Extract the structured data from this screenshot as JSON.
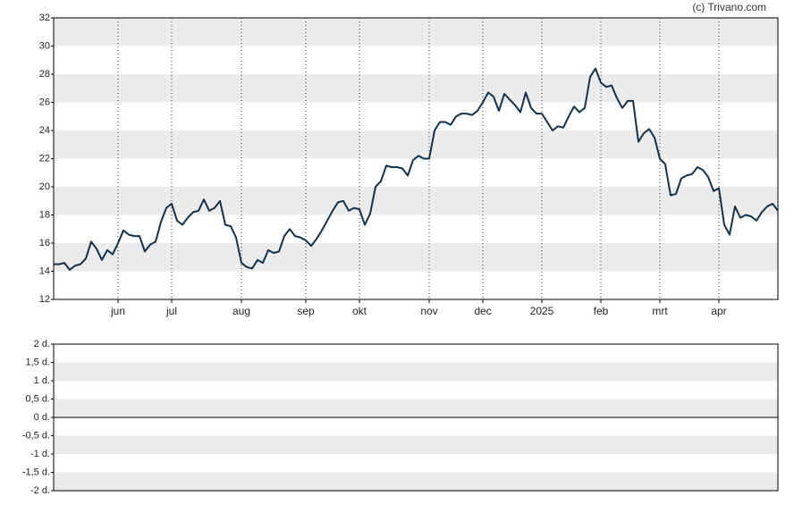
{
  "watermark": "(c) Trivano.com",
  "chart_data": [
    {
      "type": "line",
      "categories": [
        null,
        null,
        null,
        null,
        null,
        null,
        null,
        null,
        null,
        null,
        null,
        null,
        "jun",
        null,
        null,
        null,
        null,
        null,
        null,
        null,
        null,
        null,
        "jul",
        null,
        null,
        null,
        null,
        null,
        null,
        null,
        null,
        null,
        null,
        null,
        null,
        "aug",
        null,
        null,
        null,
        null,
        null,
        null,
        null,
        null,
        null,
        null,
        null,
        "sep",
        null,
        null,
        null,
        null,
        null,
        null,
        null,
        null,
        null,
        "okt",
        null,
        null,
        null,
        null,
        null,
        null,
        null,
        null,
        null,
        null,
        null,
        null,
        "nov",
        null,
        null,
        null,
        null,
        null,
        null,
        null,
        null,
        null,
        "dec",
        null,
        null,
        null,
        null,
        null,
        null,
        null,
        null,
        null,
        null,
        "2025",
        null,
        null,
        null,
        null,
        null,
        null,
        null,
        null,
        null,
        null,
        "feb",
        null,
        null,
        null,
        null,
        null,
        null,
        null,
        null,
        null,
        null,
        "mrt",
        null,
        null,
        null,
        null,
        null,
        null,
        null,
        null,
        null,
        null,
        "apr",
        null,
        null,
        null,
        null,
        null,
        null,
        null,
        null,
        null,
        null,
        null
      ],
      "series": [
        {
          "color": "#0d3350",
          "values": [
            14.5,
            14.5,
            14.6,
            14.1,
            14.4,
            14.5,
            14.9,
            16.1,
            15.6,
            14.8,
            15.5,
            15.2,
            16.0,
            16.9,
            16.6,
            16.5,
            16.5,
            15.4,
            15.9,
            16.1,
            17.5,
            18.5,
            18.8,
            17.6,
            17.3,
            17.8,
            18.2,
            18.3,
            19.1,
            18.3,
            18.5,
            19.0,
            17.3,
            17.2,
            16.4,
            14.6,
            14.3,
            14.2,
            14.8,
            14.6,
            15.5,
            15.3,
            15.4,
            16.5,
            17.0,
            16.5,
            16.4,
            16.2,
            15.8,
            16.3,
            16.9,
            17.6,
            18.3,
            18.9,
            19.0,
            18.3,
            18.5,
            18.4,
            17.3,
            18.1,
            20.0,
            20.4,
            21.5,
            21.4,
            21.4,
            21.3,
            20.8,
            21.9,
            22.2,
            22.0,
            22.0,
            24.0,
            24.6,
            24.6,
            24.4,
            25.0,
            25.2,
            25.2,
            25.1,
            25.4,
            26.0,
            26.7,
            26.4,
            25.4,
            26.6,
            26.2,
            25.8,
            25.3,
            26.7,
            25.6,
            25.2,
            25.2,
            24.6,
            24.0,
            24.3,
            24.2,
            25.0,
            25.7,
            25.3,
            25.6,
            27.8,
            28.4,
            27.4,
            27.1,
            27.2,
            26.3,
            25.6,
            26.1,
            26.1,
            23.2,
            23.8,
            24.1,
            23.5,
            22.0,
            21.6,
            19.4,
            19.5,
            20.6,
            20.8,
            20.9,
            21.4,
            21.2,
            20.7,
            19.7,
            19.9,
            17.3,
            16.6,
            18.6,
            17.8,
            18.0,
            17.9,
            17.6,
            18.2,
            18.6,
            18.8,
            18.3
          ]
        }
      ],
      "ylim": [
        12,
        32
      ],
      "yticks": [
        12,
        14,
        16,
        18,
        20,
        22,
        24,
        26,
        28,
        30,
        32
      ],
      "grid": true
    },
    {
      "type": "line",
      "ylim": [
        -2,
        2
      ],
      "yticks": [
        {
          "value": -2,
          "label": "-2 d."
        },
        {
          "value": -1.5,
          "label": "-1,5 d."
        },
        {
          "value": -1,
          "label": "-1 d."
        },
        {
          "value": -0.5,
          "label": "-0,5 d."
        },
        {
          "value": 0,
          "label": "0 d."
        },
        {
          "value": 0.5,
          "label": "0,5 d."
        },
        {
          "value": 1,
          "label": "1 d."
        },
        {
          "value": 1.5,
          "label": "1,5 d."
        },
        {
          "value": 2,
          "label": "2 d."
        }
      ],
      "grid": true
    }
  ]
}
